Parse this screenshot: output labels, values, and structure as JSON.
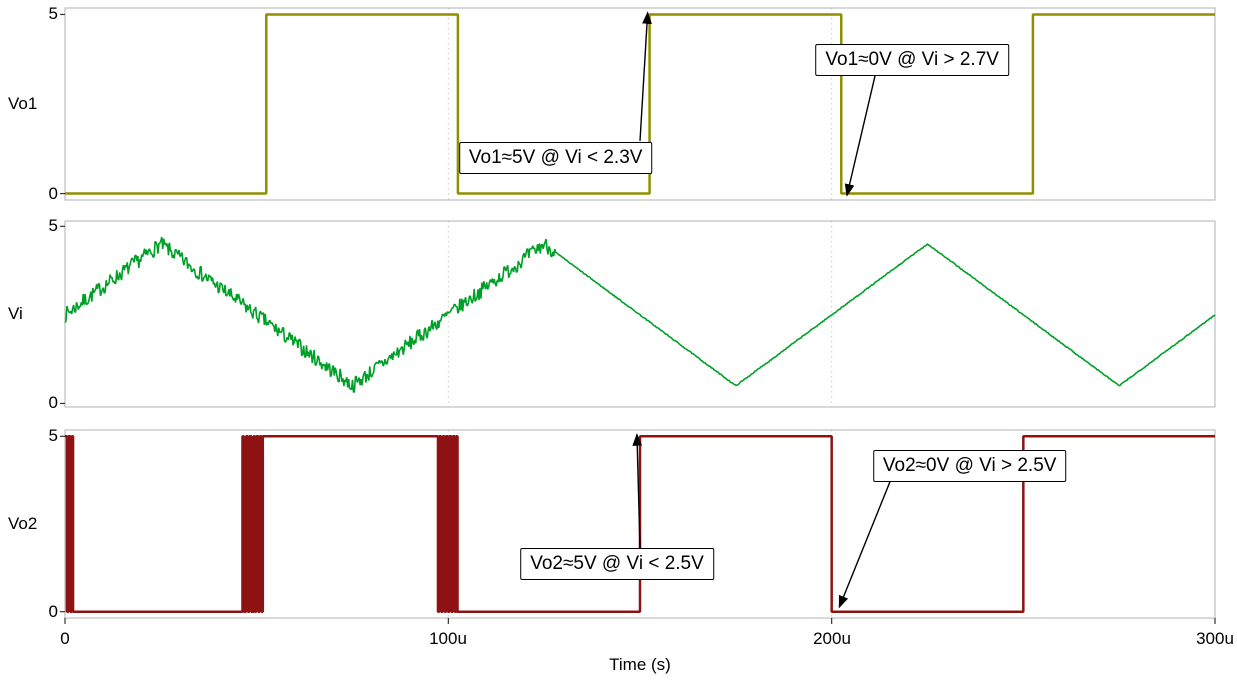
{
  "chart_data": {
    "type": "line",
    "title": "",
    "xlabel": "Time (s)",
    "x_range_us": [
      0,
      300
    ],
    "x_ticks": [
      {
        "t": 0,
        "label": "0"
      },
      {
        "t": 100,
        "label": "100u"
      },
      {
        "t": 200,
        "label": "200u"
      },
      {
        "t": 300,
        "label": "300u"
      }
    ],
    "grid_x_us": [
      100,
      200
    ],
    "grid_on": true,
    "legend": "none",
    "panels": [
      {
        "name": "Vo1",
        "color": "#8f8f00",
        "y_range": [
          0,
          5
        ],
        "y_ticks": [
          {
            "v": 5,
            "label": "5"
          },
          {
            "v": 0,
            "label": "0"
          }
        ],
        "waveform": {
          "kind": "step",
          "initial": 0,
          "events": [
            [
              52.5,
              5
            ],
            [
              102.5,
              0
            ],
            [
              152.5,
              5
            ],
            [
              202.5,
              0
            ],
            [
              252.5,
              5
            ]
          ]
        },
        "annotations": [
          {
            "text": "Vo1≈5V @ Vi < 2.3V",
            "box": {
              "t": 128,
              "v": 1.0
            },
            "arrow_from": {
              "t": 150,
              "v": 1.47
            },
            "target": {
              "t": 152,
              "v": 5.05
            }
          },
          {
            "text": "Vo1≈0V @ Vi > 2.7V",
            "box": {
              "t": 221,
              "v": 3.73
            },
            "arrow_from": {
              "t": 211.3,
              "v": 3.28
            },
            "target": {
              "t": 204,
              "v": -0.05
            }
          }
        ]
      },
      {
        "name": "Vi",
        "color": "#00a028",
        "y_range": [
          0,
          5
        ],
        "y_ticks": [
          {
            "v": 5,
            "label": "5"
          },
          {
            "v": 0,
            "label": "0"
          }
        ],
        "waveform": {
          "kind": "triangle",
          "breakpoints": [
            [
              0,
              2.5
            ],
            [
              25,
              4.5
            ],
            [
              75,
              0.5
            ],
            [
              125,
              4.5
            ],
            [
              175,
              0.5
            ],
            [
              225,
              4.5
            ],
            [
              275,
              0.5
            ],
            [
              300,
              2.5
            ]
          ],
          "noise": {
            "amplitude": 0.22,
            "residual": 0.015,
            "clean_after_us": 128,
            "sample_step_us": 0.25,
            "seed": 7
          }
        },
        "annotations": []
      },
      {
        "name": "Vo2",
        "color": "#8e1212",
        "y_range": [
          0,
          5
        ],
        "y_ticks": [
          {
            "v": 5,
            "label": "5"
          },
          {
            "v": 0,
            "label": "0"
          }
        ],
        "waveform": {
          "kind": "step",
          "initial": 5,
          "events": [
            [
              0.5,
              0
            ],
            [
              0.9,
              5
            ],
            [
              1.4,
              0
            ],
            [
              1.8,
              5
            ],
            [
              2.1,
              0
            ],
            [
              46.3,
              5
            ],
            [
              46.6,
              0
            ],
            [
              47.2,
              5
            ],
            [
              47.7,
              0
            ],
            [
              48.1,
              5
            ],
            [
              48.6,
              0
            ],
            [
              49.2,
              5
            ],
            [
              49.5,
              0
            ],
            [
              49.9,
              5
            ],
            [
              50.4,
              0
            ],
            [
              50.8,
              5
            ],
            [
              51.3,
              0
            ],
            [
              51.6,
              5
            ],
            [
              97.3,
              0
            ],
            [
              97.6,
              5
            ],
            [
              98.1,
              0
            ],
            [
              98.5,
              5
            ],
            [
              99.0,
              0
            ],
            [
              99.4,
              5
            ],
            [
              99.9,
              0
            ],
            [
              100.3,
              5
            ],
            [
              100.8,
              0
            ],
            [
              101.2,
              5
            ],
            [
              101.7,
              0
            ],
            [
              102.1,
              5
            ],
            [
              102.4,
              0
            ],
            [
              150,
              5
            ],
            [
              200,
              0
            ],
            [
              250,
              5
            ]
          ]
        },
        "annotations": [
          {
            "text": "Vo2≈5V @ Vi < 2.5V",
            "box": {
              "t": 144,
              "v": 1.36
            },
            "arrow_from": {
              "t": 150,
              "v": 1.82
            },
            "target": {
              "t": 149.2,
              "v": 5.05
            }
          },
          {
            "text": "Vo2≈0V @ Vi > 2.5V",
            "box": {
              "t": 236,
              "v": 4.15
            },
            "arrow_from": {
              "t": 215.2,
              "v": 3.7
            },
            "target": {
              "t": 202,
              "v": 0.13
            }
          }
        ]
      }
    ]
  }
}
